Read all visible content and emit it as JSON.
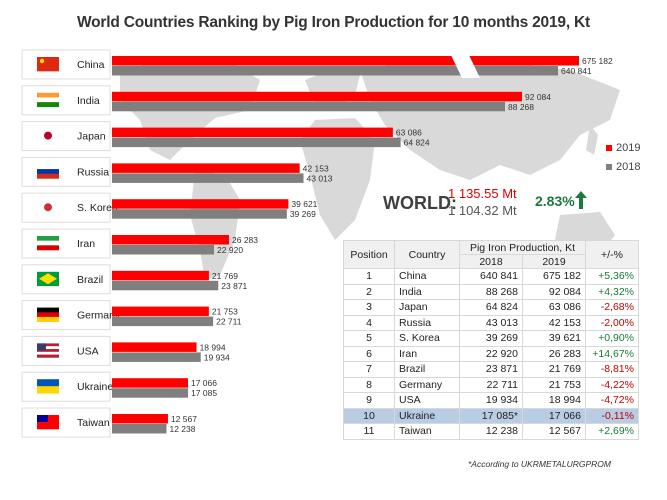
{
  "title": "World Countries Ranking by Pig Iron Production for 10 months 2019,  Kt",
  "legend": [
    {
      "label": "2019",
      "color": "#ff0000"
    },
    {
      "label": "2018",
      "color": "#7f7f7f"
    }
  ],
  "chart_data": {
    "type": "bar",
    "orientation": "horizontal",
    "categories": [
      "China",
      "India",
      "Japan",
      "Russia",
      "S. Korea",
      "Iran",
      "Brazil",
      "Germany",
      "USA",
      "Ukraine",
      "Taiwan"
    ],
    "series": [
      {
        "name": "2019",
        "color": "#ff0000",
        "values": [
          675182,
          92084,
          63086,
          42153,
          39621,
          26283,
          21769,
          21753,
          18994,
          17066,
          12567
        ],
        "labels": [
          "675 182",
          "92 084",
          "63 086",
          "42 153",
          "39 621",
          "26 283",
          "21 769",
          "21 753",
          "18 994",
          "17 066",
          "12 567"
        ]
      },
      {
        "name": "2018",
        "color": "#7f7f7f",
        "values": [
          640841,
          88268,
          64824,
          43013,
          39269,
          22920,
          23871,
          22711,
          19934,
          17085,
          12238
        ],
        "labels": [
          "640 841",
          "88 268",
          "64 824",
          "43 013",
          "39 269",
          "22 920",
          "23 871",
          "22 711",
          "19 934",
          "17 085",
          "12 238"
        ]
      }
    ],
    "axis_break": "China bars truncated",
    "grid": false,
    "legend_position": "right"
  },
  "world": {
    "label": "WORLD:",
    "value_2019": "1 135.55 Mt",
    "value_2018": "1 104.32 Mt",
    "change": "2.83%",
    "change_color": "#1a7a3a"
  },
  "table": {
    "headers": {
      "position": "Position",
      "country": "Country",
      "production": "Pig Iron Production, Kt",
      "y2018": "2018",
      "y2019": "2019",
      "change": "+/-%"
    },
    "rows": [
      {
        "pos": "1",
        "country": "China",
        "v2018": "640 841",
        "v2019": "675 182",
        "change": "+5,36%"
      },
      {
        "pos": "2",
        "country": "India",
        "v2018": "88 268",
        "v2019": "92 084",
        "change": "+4,32%"
      },
      {
        "pos": "3",
        "country": "Japan",
        "v2018": "64 824",
        "v2019": "63 086",
        "change": "-2,68%"
      },
      {
        "pos": "4",
        "country": "Russia",
        "v2018": "43 013",
        "v2019": "42 153",
        "change": "-2,00%"
      },
      {
        "pos": "5",
        "country": "S. Korea",
        "v2018": "39 269",
        "v2019": "39 621",
        "change": "+0,90%"
      },
      {
        "pos": "6",
        "country": "Iran",
        "v2018": "22 920",
        "v2019": "26 283",
        "change": "+14,67%"
      },
      {
        "pos": "7",
        "country": "Brazil",
        "v2018": "23 871",
        "v2019": "21 769",
        "change": "-8,81%"
      },
      {
        "pos": "8",
        "country": "Germany",
        "v2018": "22 711",
        "v2019": "21 753",
        "change": "-4,22%"
      },
      {
        "pos": "9",
        "country": "USA",
        "v2018": "19 934",
        "v2019": "18 994",
        "change": "-4,72%"
      },
      {
        "pos": "10",
        "country": "Ukraine",
        "v2018": "17 085*",
        "v2019": "17 066",
        "change": "-0,11%",
        "highlight": true
      },
      {
        "pos": "11",
        "country": "Taiwan",
        "v2018": "12 238",
        "v2019": "12 567",
        "change": "+2,69%"
      }
    ],
    "positive_color": "#1a7a3a",
    "negative_color": "#c00000"
  },
  "footnote": "*According to UKRMETALURGPROM"
}
